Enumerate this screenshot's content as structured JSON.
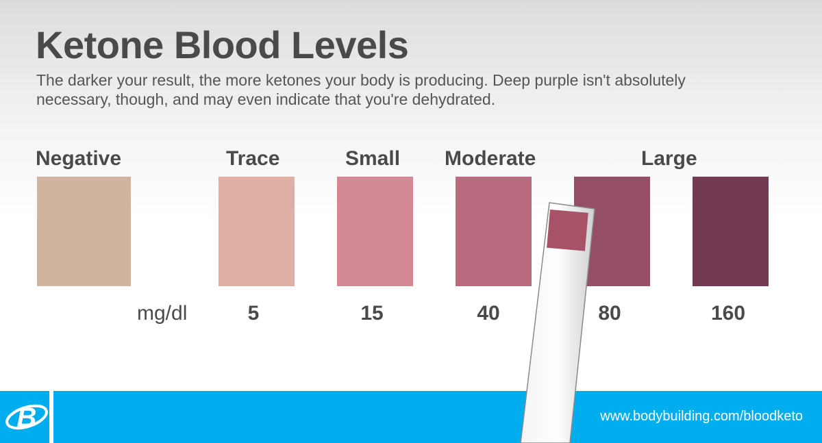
{
  "header": {
    "title": "Ketone Blood Levels",
    "subtitle": "The darker your result, the more ketones your body is producing. Deep purple isn't absolutely necessary, though, and may even indicate that you're dehydrated."
  },
  "scale": {
    "unit": "mg/dl",
    "categories": [
      {
        "label": "Negative"
      },
      {
        "label": "Trace"
      },
      {
        "label": "Small"
      },
      {
        "label": "Moderate"
      },
      {
        "label": "Large"
      }
    ],
    "swatches": [
      {
        "color": "#d1b4a0",
        "value": ""
      },
      {
        "color": "#dfaea4",
        "value": "5"
      },
      {
        "color": "#d38893",
        "value": "15"
      },
      {
        "color": "#bb6a80",
        "value": "40"
      },
      {
        "color": "#944f66",
        "value": "80"
      },
      {
        "color": "#723b52",
        "value": "160"
      }
    ]
  },
  "test_strip": {
    "pad_color": "#a85268"
  },
  "footer": {
    "logo": "bodybuilding-b-logo-icon",
    "url": "www.bodybuilding.com/bloodketo",
    "background_color": "#00aeef"
  }
}
